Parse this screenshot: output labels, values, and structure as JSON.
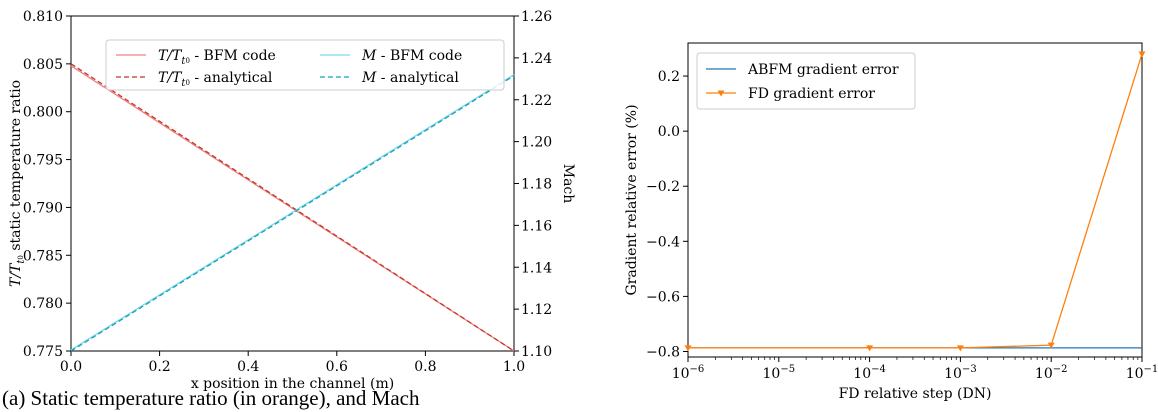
{
  "caption": "(a) Static temperature ratio (in orange), and Mach",
  "chart_data": [
    {
      "type": "line",
      "xlabel": "x position in the channel (m)",
      "ylabel": "T/T_{t_0} static temperature ratio",
      "ylabel_prefix": "T/T",
      "ylabel_sub": "t",
      "ylabel_subsub": "0",
      "ylabel_suffix": " static temperature ratio",
      "y2label": "Mach",
      "xlim": [
        0.0,
        1.0
      ],
      "ylim": [
        0.775,
        0.81
      ],
      "y2lim": [
        1.1,
        1.26
      ],
      "x_ticks": [
        "0.0",
        "0.2",
        "0.4",
        "0.6",
        "0.8",
        "1.0"
      ],
      "y_ticks": [
        "0.775",
        "0.780",
        "0.785",
        "0.790",
        "0.795",
        "0.800",
        "0.805",
        "0.810"
      ],
      "y2_ticks": [
        "1.10",
        "1.12",
        "1.14",
        "1.16",
        "1.18",
        "1.20",
        "1.22",
        "1.24",
        "1.26"
      ],
      "legend_position": "top",
      "series": [
        {
          "name": "T/T_{t_0} - BFM code",
          "name_prefix": "T/T",
          "name_suffix": " - BFM code",
          "axis": "left",
          "style": "solid",
          "color": "#f08080",
          "x": [
            0.0,
            1.0
          ],
          "y": [
            0.8048,
            0.775
          ]
        },
        {
          "name": "T/T_{t_0} - analytical",
          "name_prefix": "T/T",
          "name_suffix": " - analytical",
          "axis": "left",
          "style": "dashed",
          "color": "#c0392b",
          "x": [
            0.0,
            1.0
          ],
          "y": [
            0.805,
            0.775
          ]
        },
        {
          "name": "M - BFM code",
          "name_prefix": "M",
          "name_suffix": " - BFM code",
          "axis": "right",
          "style": "solid",
          "color": "#7fd6ec",
          "x": [
            0.0,
            1.0
          ],
          "y": [
            1.1005,
            1.232
          ]
        },
        {
          "name": "M - analytical",
          "name_prefix": "M",
          "name_suffix": " - analytical",
          "axis": "right",
          "style": "dashed",
          "color": "#17a2b8",
          "x": [
            0.0,
            1.0
          ],
          "y": [
            1.1,
            1.2315
          ]
        }
      ]
    },
    {
      "type": "line",
      "xlabel": "FD relative step (DN)",
      "ylabel": "Gradient relative error (%)",
      "x_scale": "log",
      "xlim": [
        1e-06,
        0.1
      ],
      "ylim": [
        -0.82,
        0.32
      ],
      "x_ticks": [
        "10^-6",
        "10^-5",
        "10^-4",
        "10^-3",
        "10^-2",
        "10^-1"
      ],
      "y_ticks": [
        "−0.8",
        "−0.6",
        "−0.4",
        "−0.2",
        "0.0",
        "0.2"
      ],
      "legend_position": "top-left",
      "series": [
        {
          "name": "ABFM gradient error",
          "style": "solid",
          "color": "#1f77b4",
          "x": [
            1e-06,
            0.0001,
            0.001,
            0.01,
            0.1
          ],
          "y": [
            -0.787,
            -0.787,
            -0.787,
            -0.787,
            -0.787
          ]
        },
        {
          "name": "FD gradient error",
          "style": "solid",
          "marker": "triangle-down",
          "color": "#ff7f0e",
          "x": [
            1e-06,
            0.0001,
            0.001,
            0.01,
            0.1
          ],
          "y": [
            -0.787,
            -0.787,
            -0.787,
            -0.777,
            0.28
          ]
        }
      ]
    }
  ]
}
